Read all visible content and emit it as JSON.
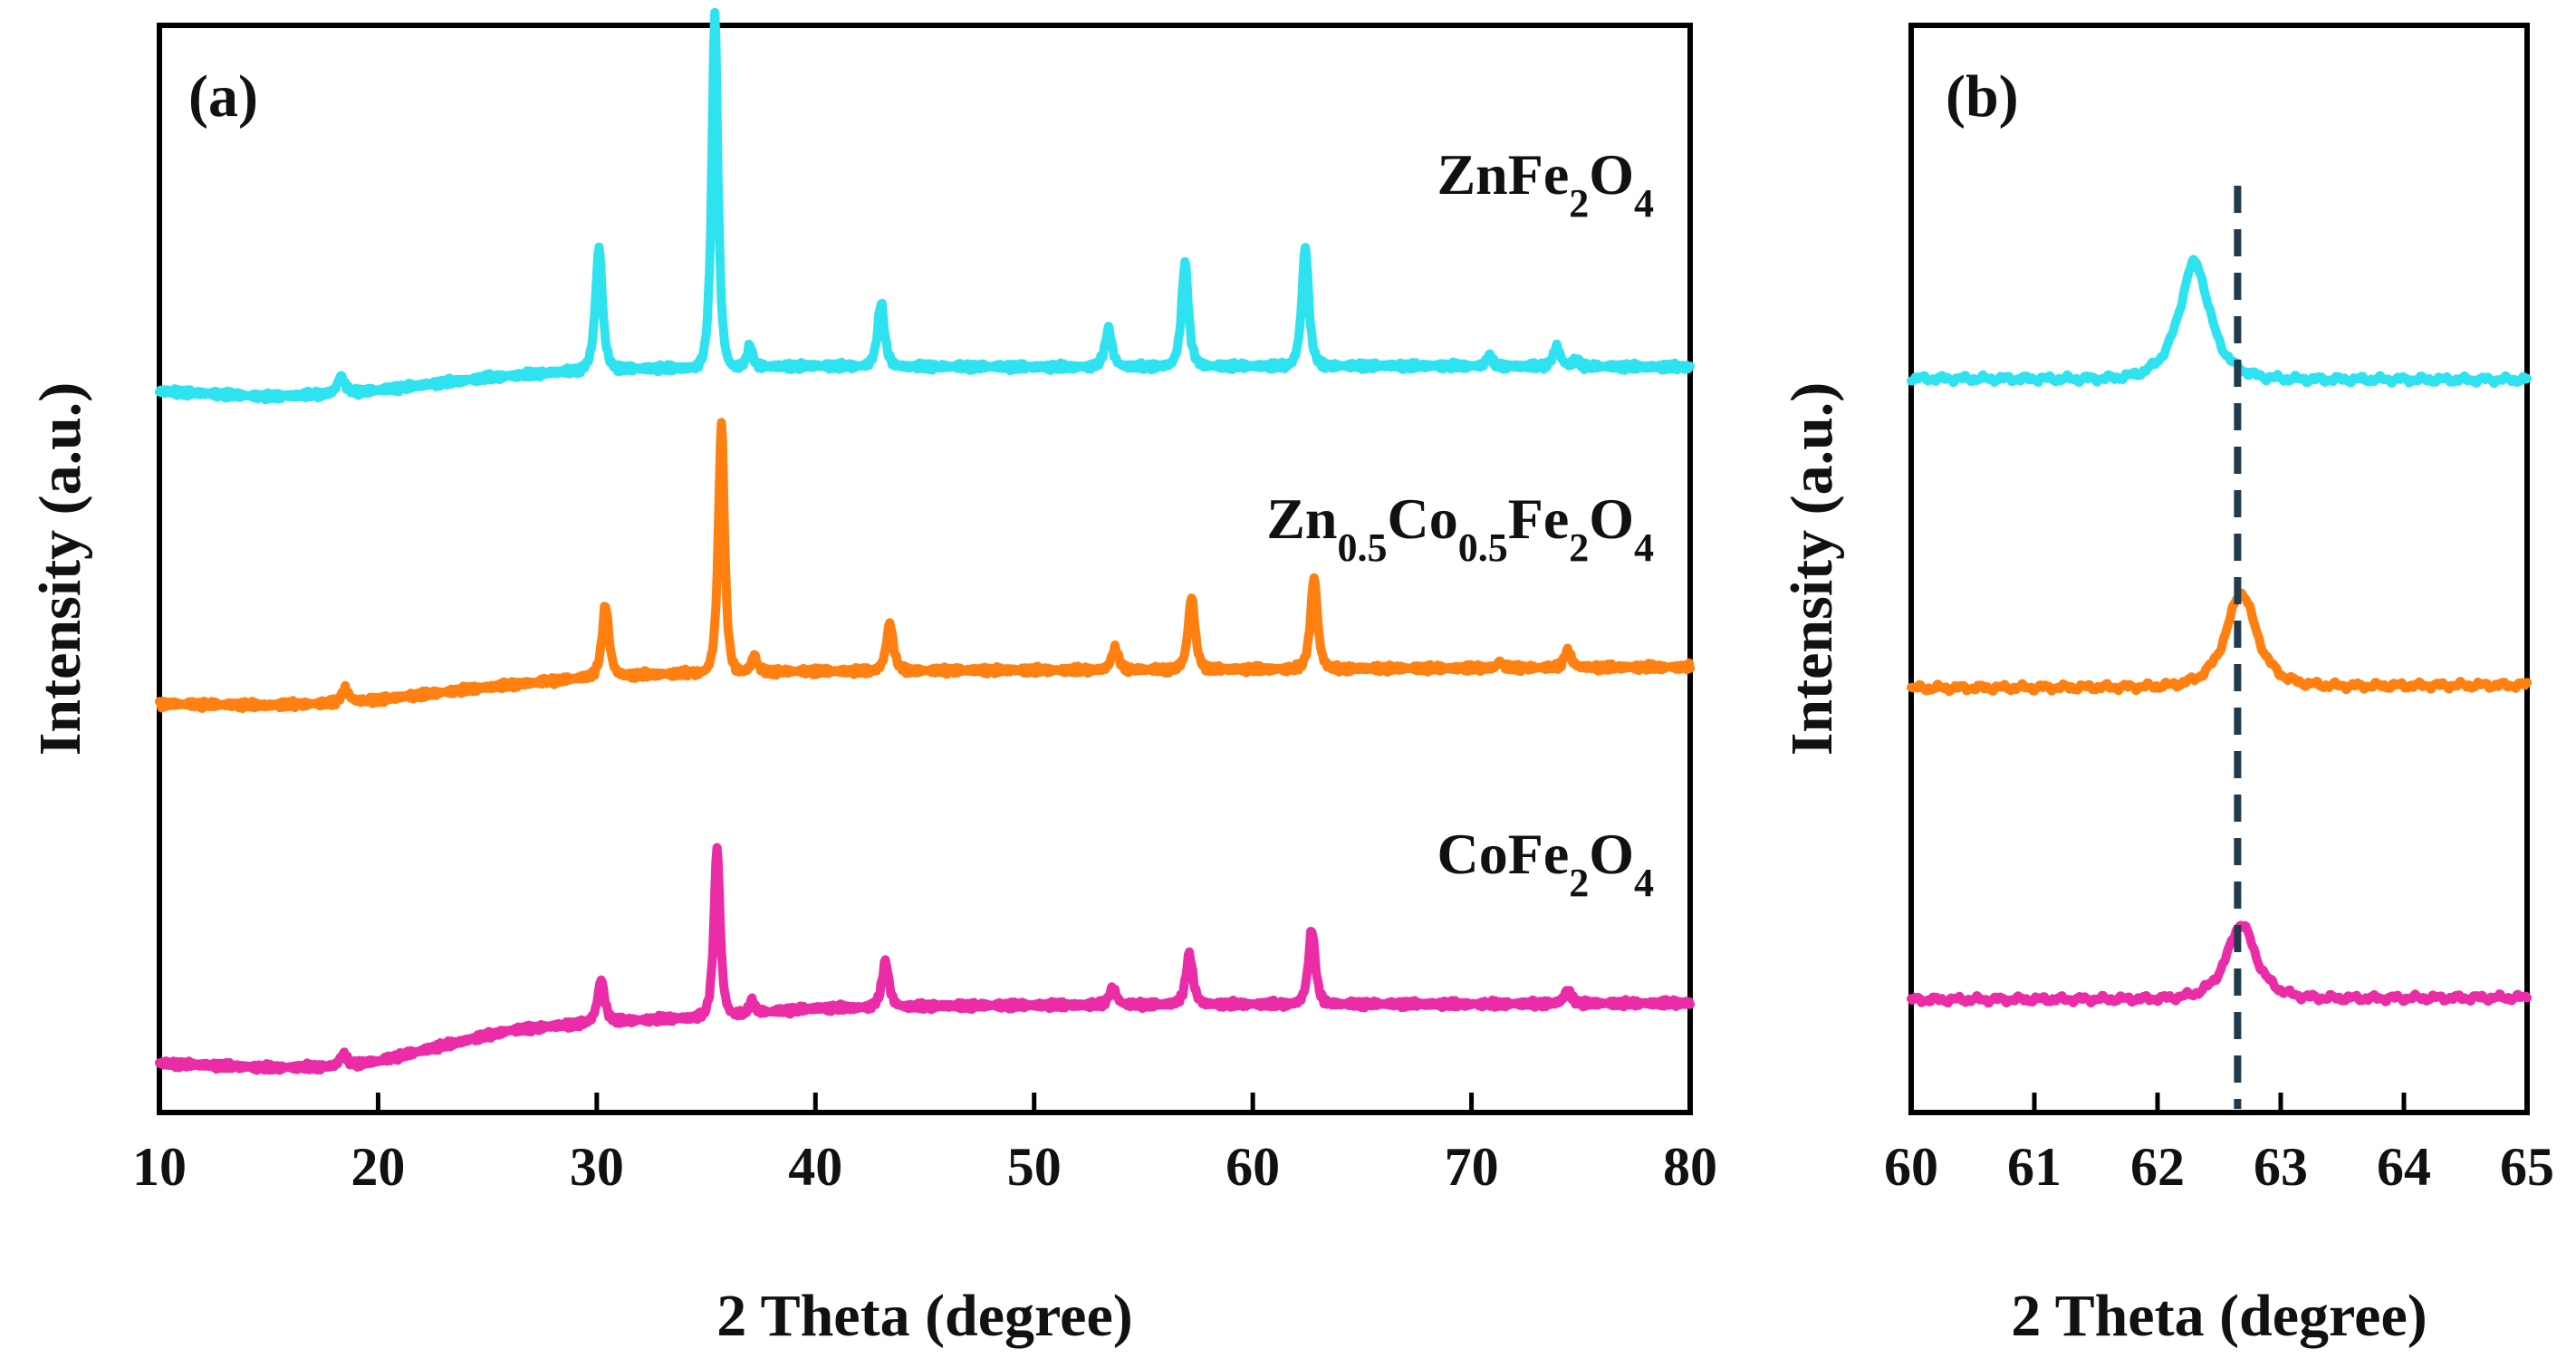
{
  "chart_data": [
    {
      "type": "line",
      "panel_label": "(a)",
      "xlabel": "2 Theta (degree)",
      "ylabel": "Intensity (a.u.)",
      "xlim": [
        10,
        80
      ],
      "ylim": [
        0,
        100
      ],
      "xticks": [
        10,
        20,
        30,
        40,
        50,
        60,
        70,
        80
      ],
      "y_ticklabels": false,
      "grid": false,
      "series": [
        {
          "name": "ZnFe2O4",
          "label_parts": [
            {
              "t": "ZnFe"
            },
            {
              "t": "2",
              "sub": true
            },
            {
              "t": "O"
            },
            {
              "t": "4",
              "sub": true
            }
          ],
          "color": "#2ee3ef",
          "baseline": [
            [
              10,
              66.5
            ],
            [
              15,
              66
            ],
            [
              18,
              66.3
            ],
            [
              20,
              66.6
            ],
            [
              25,
              67.8
            ],
            [
              30,
              68.6
            ],
            [
              40,
              68.9
            ],
            [
              50,
              68.8
            ],
            [
              60,
              68.9
            ],
            [
              70,
              68.9
            ],
            [
              80,
              68.8
            ]
          ],
          "peaks": [
            [
              18.3,
              1.6,
              0.25
            ],
            [
              30.1,
              11.5,
              0.25
            ],
            [
              35.4,
              33.5,
              0.22
            ],
            [
              37.0,
              2.0,
              0.2
            ],
            [
              43.0,
              6.0,
              0.25
            ],
            [
              53.4,
              3.6,
              0.25
            ],
            [
              56.9,
              9.8,
              0.25
            ],
            [
              62.4,
              11.2,
              0.25
            ],
            [
              70.8,
              1.0,
              0.2
            ],
            [
              73.9,
              1.9,
              0.25
            ],
            [
              74.8,
              0.7,
              0.2
            ]
          ]
        },
        {
          "name": "Zn0.5Co0.5Fe2O4",
          "label_parts": [
            {
              "t": "Zn"
            },
            {
              "t": "0.5",
              "sub": true
            },
            {
              "t": "Co"
            },
            {
              "t": "0.5",
              "sub": true
            },
            {
              "t": "Fe"
            },
            {
              "t": "2",
              "sub": true
            },
            {
              "t": "O"
            },
            {
              "t": "4",
              "sub": true
            }
          ],
          "color": "#ff7f10",
          "baseline": [
            [
              10,
              37
            ],
            [
              15,
              36.9
            ],
            [
              18,
              37.1
            ],
            [
              20,
              37.4
            ],
            [
              25,
              38.6
            ],
            [
              30,
              39.6
            ],
            [
              35,
              40
            ],
            [
              40,
              40.1
            ],
            [
              50,
              40.2
            ],
            [
              60,
              40.3
            ],
            [
              70,
              40.4
            ],
            [
              80,
              40.5
            ]
          ],
          "peaks": [
            [
              18.5,
              1.3,
              0.25
            ],
            [
              30.4,
              6.7,
              0.25
            ],
            [
              35.7,
              23.6,
              0.22
            ],
            [
              37.2,
              1.6,
              0.2
            ],
            [
              43.4,
              4.5,
              0.25
            ],
            [
              53.7,
              2.0,
              0.25
            ],
            [
              57.2,
              6.8,
              0.25
            ],
            [
              62.8,
              8.6,
              0.25
            ],
            [
              71.3,
              0.6,
              0.2
            ],
            [
              74.4,
              1.6,
              0.25
            ]
          ]
        },
        {
          "name": "CoFe2O4",
          "label_parts": [
            {
              "t": "CoFe"
            },
            {
              "t": "2",
              "sub": true
            },
            {
              "t": "O"
            },
            {
              "t": "4",
              "sub": true
            }
          ],
          "color": "#ea2da7",
          "baseline": [
            [
              10,
              3.1
            ],
            [
              15,
              2.7
            ],
            [
              18,
              2.8
            ],
            [
              20,
              3.3
            ],
            [
              23,
              4.8
            ],
            [
              26,
              6.2
            ],
            [
              30,
              7.0
            ],
            [
              35,
              7.5
            ],
            [
              40,
              8.3
            ],
            [
              45,
              8.5
            ],
            [
              50,
              8.6
            ],
            [
              60,
              8.7
            ],
            [
              70,
              8.7
            ],
            [
              80,
              8.8
            ]
          ],
          "peaks": [
            [
              18.4,
              1.1,
              0.25
            ],
            [
              30.2,
              4.0,
              0.25
            ],
            [
              35.5,
              16.0,
              0.22
            ],
            [
              37.1,
              1.2,
              0.2
            ],
            [
              43.2,
              4.3,
              0.25
            ],
            [
              53.6,
              1.6,
              0.25
            ],
            [
              57.1,
              4.8,
              0.25
            ],
            [
              62.7,
              7.0,
              0.25
            ],
            [
              74.4,
              1.3,
              0.25
            ]
          ]
        }
      ]
    },
    {
      "type": "line",
      "panel_label": "(b)",
      "xlabel": "2 Theta (degree)",
      "ylabel": "Intensity (a.u.)",
      "xlim": [
        60,
        65
      ],
      "ylim": [
        0,
        100
      ],
      "xticks": [
        60,
        61,
        62,
        63,
        64,
        65
      ],
      "y_ticklabels": false,
      "grid": false,
      "reference_line_x": 62.65,
      "series": [
        {
          "name": "ZnFe2O4",
          "color": "#2ee3ef",
          "baseline": [
            [
              60,
              67.7
            ],
            [
              65,
              67.6
            ]
          ],
          "peaks": [
            [
              62.3,
              11.0,
              0.2
            ]
          ]
        },
        {
          "name": "Zn0.5Co0.5Fe2O4",
          "color": "#ff7f10",
          "baseline": [
            [
              60,
              38.5
            ],
            [
              65,
              38.8
            ]
          ],
          "peaks": [
            [
              62.68,
              8.8,
              0.2
            ]
          ]
        },
        {
          "name": "CoFe2O4",
          "color": "#ea2da7",
          "baseline": [
            [
              60,
              9.1
            ],
            [
              65,
              9.3
            ]
          ],
          "peaks": [
            [
              62.68,
              7.0,
              0.19
            ]
          ]
        }
      ]
    }
  ]
}
